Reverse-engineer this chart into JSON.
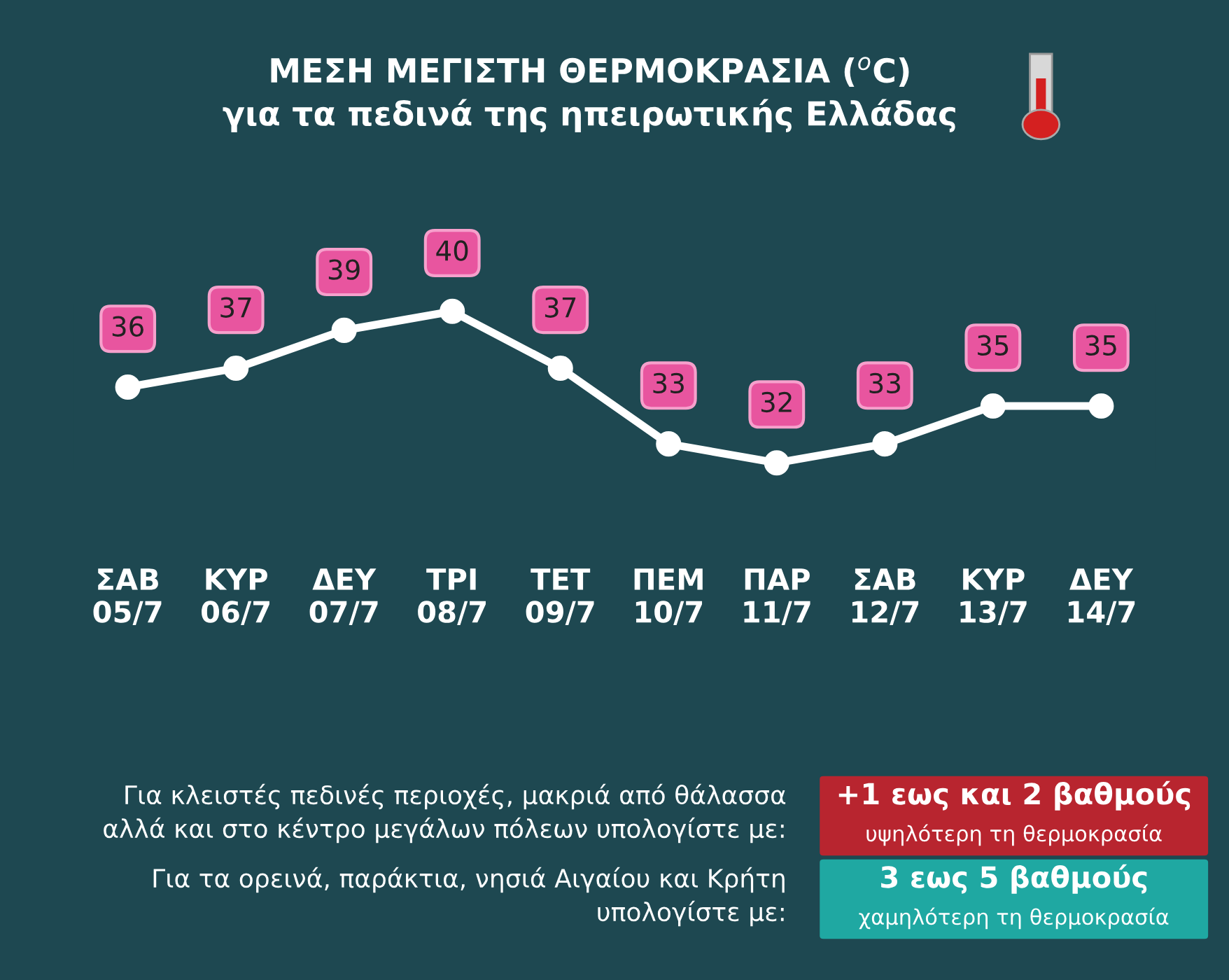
{
  "chart_data": {
    "type": "line",
    "title": "ΜΕΣΗ ΜΕΓΙΣΤΗ ΘΕΡΜΟΚΡΑΣΙΑ ($^{o}$C)",
    "subtitle": "για τα πεδινά της ηπειρωτικής Ελλάδας",
    "categories": [
      "ΣΑΒ\n05/7",
      "ΚΥΡ\n06/7",
      "ΔΕΥ\n07/7",
      "ΤΡΙ\n08/7",
      "ΤΕΤ\n09/7",
      "ΠΕΜ\n10/7",
      "ΠΑΡ\n11/7",
      "ΣΑΒ\n12/7",
      "ΚΥΡ\n13/7",
      "ΔΕΥ\n14/7"
    ],
    "series": [
      {
        "color": "#ffffff",
        "values": [
          36,
          37,
          39,
          40,
          37,
          33,
          32,
          33,
          35,
          35
        ]
      }
    ],
    "data_labels": true,
    "marker": "circle",
    "line_style": "solid",
    "grid": false,
    "legend": false,
    "tick_labels": "x",
    "annotations": [
      "Για κλειστές πεδινές περιοχές, μακριά από θάλασσα\nαλλά και στο κέντρο μεγάλων πόλεων υπολογίστε με:",
      "+1 εως και 2 βαθμούς",
      "υψηλότερη τη θερμοκρασία",
      "Για τα ορεινά, παράκτια, νησιά Αιγαίου και Κρήτη\nυπολογίστε με:",
      "3 εως 5 βαθμούς",
      "χαμηλότερη τη θερμοκρασία"
    ]
  }
}
